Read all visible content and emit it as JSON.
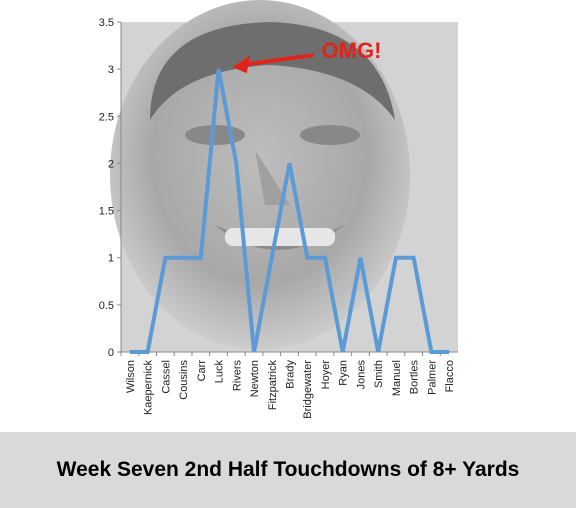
{
  "chart_data": {
    "type": "line",
    "title": "Week Seven 2nd Half Touchdowns of 8+ Yards",
    "categories": [
      "Wilson",
      "Kaepernick",
      "Cassel",
      "Cousins",
      "Carr",
      "Luck",
      "Rivers",
      "Newton",
      "Fitzpatrick",
      "Brady",
      "Bridgewater",
      "Hoyer",
      "Ryan",
      "Jones",
      "Smith",
      "Manuel",
      "Bortles",
      "Palmer",
      "Flacco"
    ],
    "series": [
      {
        "values": [
          0,
          0,
          1,
          1,
          1,
          3,
          2,
          0,
          1,
          2,
          1,
          1,
          0,
          1,
          0,
          1,
          1,
          0,
          0
        ],
        "color": "#5b9bd5"
      }
    ],
    "yticks": [
      "0",
      "0.5",
      "1",
      "1.5",
      "2",
      "2.5",
      "3",
      "3.5"
    ],
    "ylim": [
      0,
      3.5
    ],
    "grid": false,
    "legend": "none",
    "annotation": {
      "text": "OMG!",
      "target_category": "Luck",
      "target_value": 3,
      "color": "#e0241b"
    }
  },
  "background_image": "grayscale-face-photo"
}
